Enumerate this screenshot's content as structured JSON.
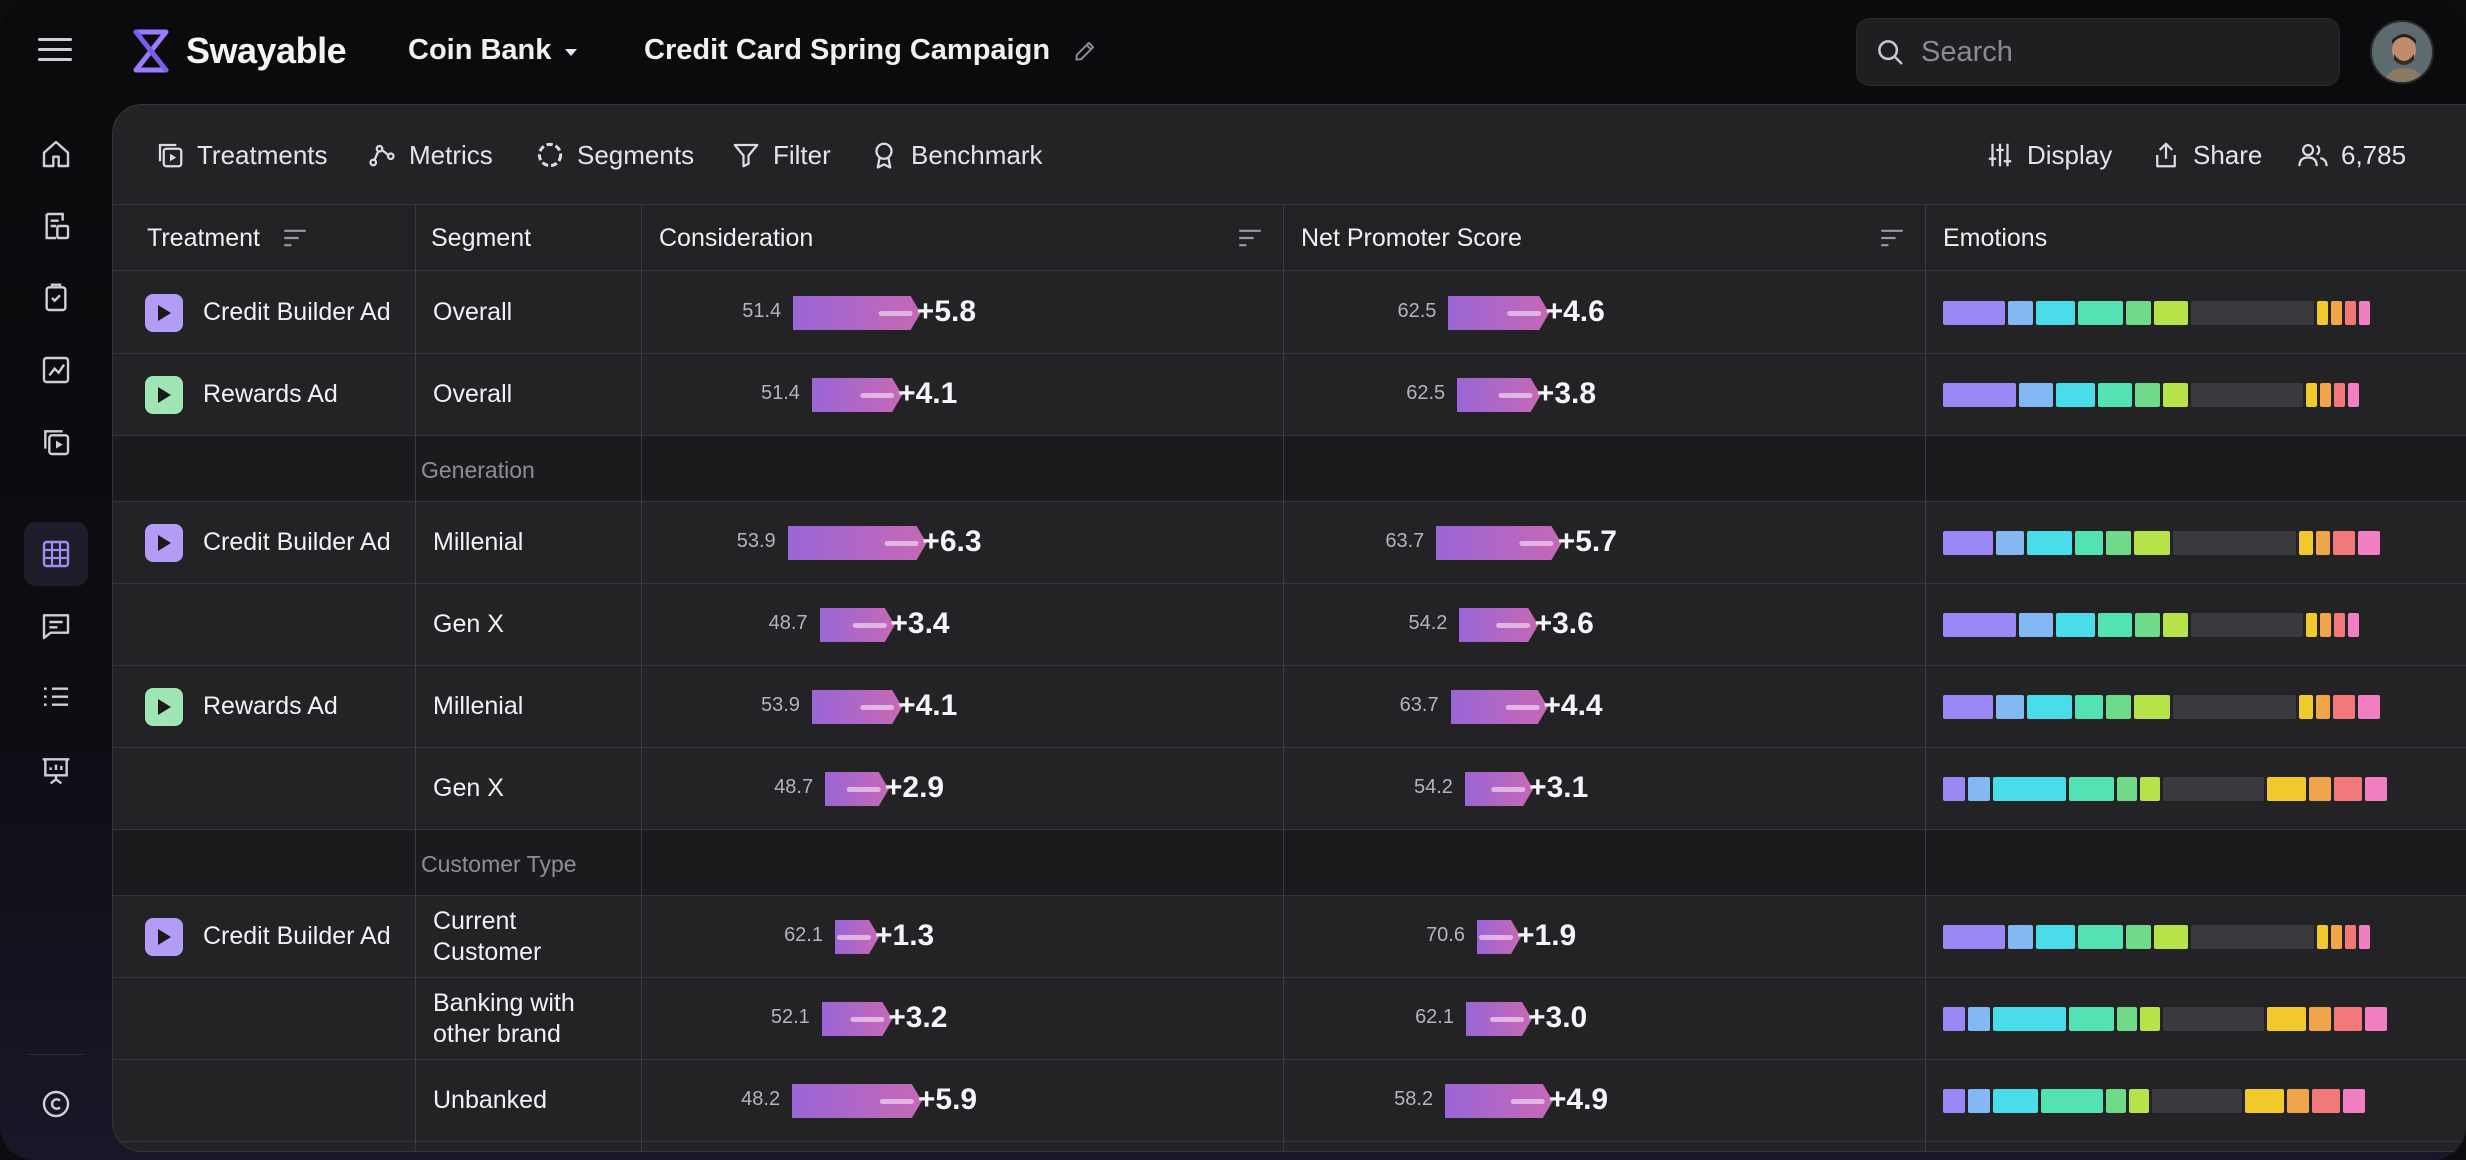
{
  "app": {
    "name": "Swayable",
    "org": "Coin Bank",
    "campaign": "Credit Card Spring Campaign"
  },
  "search": {
    "placeholder": "Search"
  },
  "toolbar": {
    "treatments": "Treatments",
    "metrics": "Metrics",
    "segments": "Segments",
    "filter": "Filter",
    "benchmark": "Benchmark",
    "display": "Display",
    "share": "Share",
    "respondents": "6,785"
  },
  "columns": {
    "treatment": "Treatment",
    "segment": "Segment",
    "consideration": "Consideration",
    "nps": "Net Promoter Score",
    "emotions": "Emotions"
  },
  "colors": {
    "accent_purple": "#b39cf6",
    "accent_green": "#9fe6b4",
    "bar_pink": "#c668b6",
    "bar_violet": "#9a66d6"
  },
  "emotion_palette": [
    "#9b87f5",
    "#83b8f2",
    "#49dde9",
    "#52e2b4",
    "#6fdb8a",
    "#b7e34a",
    "#3a3a3e",
    "#f1c92b",
    "#f1a54a",
    "#f2797a",
    "#f27fc1"
  ],
  "groups": [
    {
      "label": "Generation"
    },
    {
      "label": "Customer Type"
    }
  ],
  "rows": [
    {
      "treatment": "Credit Builder Ad",
      "play_color": "purple",
      "segment": "Overall",
      "consideration": {
        "base": "51.4",
        "delta": "+5.8",
        "value": 5.8
      },
      "nps": {
        "base": "62.5",
        "delta": "+4.6",
        "value": 4.6
      },
      "emotions": [
        0.11,
        0.045,
        0.07,
        0.08,
        0.045,
        0.06,
        0.22,
        0.02,
        0.02,
        0.02,
        0.02
      ]
    },
    {
      "treatment": "Rewards Ad",
      "play_color": "green",
      "segment": "Overall",
      "consideration": {
        "base": "51.4",
        "delta": "+4.1",
        "value": 4.1
      },
      "nps": {
        "base": "62.5",
        "delta": "+3.8",
        "value": 3.8
      },
      "emotions": [
        0.13,
        0.06,
        0.07,
        0.06,
        0.045,
        0.045,
        0.2,
        0.02,
        0.02,
        0.02,
        0.02
      ]
    },
    {
      "treatment": "Credit Builder Ad",
      "play_color": "purple",
      "segment": "Millenial",
      "consideration": {
        "base": "53.9",
        "delta": "+6.3",
        "value": 6.3
      },
      "nps": {
        "base": "63.7",
        "delta": "+5.7",
        "value": 5.7
      },
      "emotions": [
        0.09,
        0.05,
        0.08,
        0.05,
        0.045,
        0.065,
        0.22,
        0.025,
        0.025,
        0.04,
        0.04
      ]
    },
    {
      "treatment": "",
      "play_color": "",
      "segment": "Gen X",
      "consideration": {
        "base": "48.7",
        "delta": "+3.4",
        "value": 3.4
      },
      "nps": {
        "base": "54.2",
        "delta": "+3.6",
        "value": 3.6
      },
      "emotions": [
        0.13,
        0.06,
        0.07,
        0.06,
        0.045,
        0.045,
        0.2,
        0.02,
        0.02,
        0.02,
        0.02
      ]
    },
    {
      "treatment": "Rewards Ad",
      "play_color": "green",
      "segment": "Millenial",
      "consideration": {
        "base": "53.9",
        "delta": "+4.1",
        "value": 4.1
      },
      "nps": {
        "base": "63.7",
        "delta": "+4.4",
        "value": 4.4
      },
      "emotions": [
        0.09,
        0.05,
        0.08,
        0.05,
        0.045,
        0.065,
        0.22,
        0.025,
        0.025,
        0.04,
        0.04
      ]
    },
    {
      "treatment": "",
      "play_color": "",
      "segment": "Gen X",
      "consideration": {
        "base": "48.7",
        "delta": "+2.9",
        "value": 2.9
      },
      "nps": {
        "base": "54.2",
        "delta": "+3.1",
        "value": 3.1
      },
      "emotions": [
        0.04,
        0.04,
        0.13,
        0.08,
        0.035,
        0.035,
        0.18,
        0.07,
        0.04,
        0.05,
        0.04
      ]
    },
    {
      "treatment": "Credit Builder Ad",
      "play_color": "purple",
      "segment": "Current Customer",
      "consideration": {
        "base": "62.1",
        "delta": "+1.3",
        "value": 1.3
      },
      "nps": {
        "base": "70.6",
        "delta": "+1.9",
        "value": 1.9
      },
      "emotions": [
        0.11,
        0.045,
        0.07,
        0.08,
        0.045,
        0.06,
        0.22,
        0.02,
        0.02,
        0.02,
        0.02
      ]
    },
    {
      "treatment": "",
      "play_color": "",
      "segment": "Banking with other brand",
      "consideration": {
        "base": "52.1",
        "delta": "+3.2",
        "value": 3.2
      },
      "nps": {
        "base": "62.1",
        "delta": "+3.0",
        "value": 3.0
      },
      "emotions": [
        0.04,
        0.04,
        0.13,
        0.08,
        0.035,
        0.035,
        0.18,
        0.07,
        0.04,
        0.05,
        0.04
      ]
    },
    {
      "treatment": "",
      "play_color": "",
      "segment": "Unbanked",
      "consideration": {
        "base": "48.2",
        "delta": "+5.9",
        "value": 5.9
      },
      "nps": {
        "base": "58.2",
        "delta": "+4.9",
        "value": 4.9
      },
      "emotions": [
        0.04,
        0.04,
        0.08,
        0.11,
        0.035,
        0.035,
        0.16,
        0.07,
        0.04,
        0.05,
        0.04
      ]
    }
  ]
}
